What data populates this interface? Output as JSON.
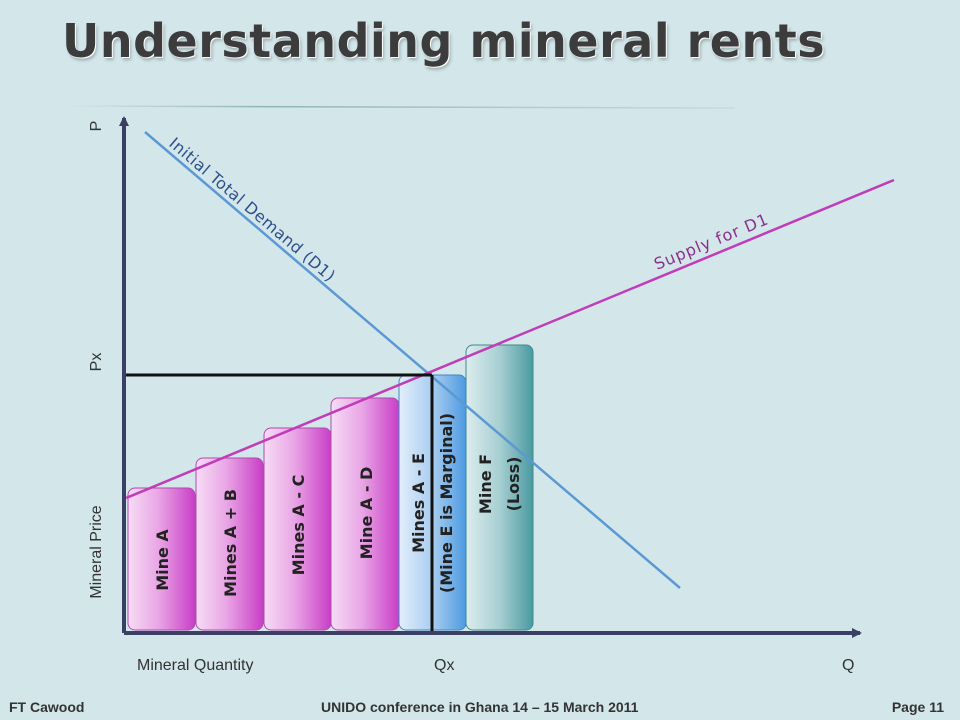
{
  "slide": {
    "title": "Understanding mineral rents",
    "footer_left": "FT Cawood",
    "footer_center": "UNIDO conference in Ghana 14 – 15 March 2011",
    "footer_right": "Page 11"
  },
  "diagram": {
    "axis_top_label": "P",
    "price_label": "Px",
    "y_axis_label": "Mineral Price",
    "x_axis_label": "Mineral Quantity",
    "quantity_label": "Qx",
    "x_end_label": "Q",
    "demand_label": "Initial Total Demand (D1)",
    "supply_label": "Supply for D1",
    "bars": [
      {
        "line1": "Mine  A",
        "line2": "",
        "color": "#d24fcf"
      },
      {
        "line1": "Mines  A + B",
        "line2": "",
        "color": "#d24fcf"
      },
      {
        "line1": "Mines A - C",
        "line2": "",
        "color": "#d24fcf"
      },
      {
        "line1": "Mine A - D",
        "line2": "",
        "color": "#d24fcf"
      },
      {
        "line1": "Mines A - E",
        "line2": "(Mine E is Marginal)",
        "color": "#5aa6e3"
      },
      {
        "line1": "Mine  F",
        "line2": "(Loss)",
        "color": "#4c9da2"
      }
    ],
    "colors": {
      "axis": "#3a3f63",
      "demand_line": "#5b98d4",
      "supply_line": "#c03cb8",
      "supply_text": "#8c2f8a",
      "demand_text": "#2f4f8a",
      "equilibrium_lines": "#111111"
    }
  }
}
